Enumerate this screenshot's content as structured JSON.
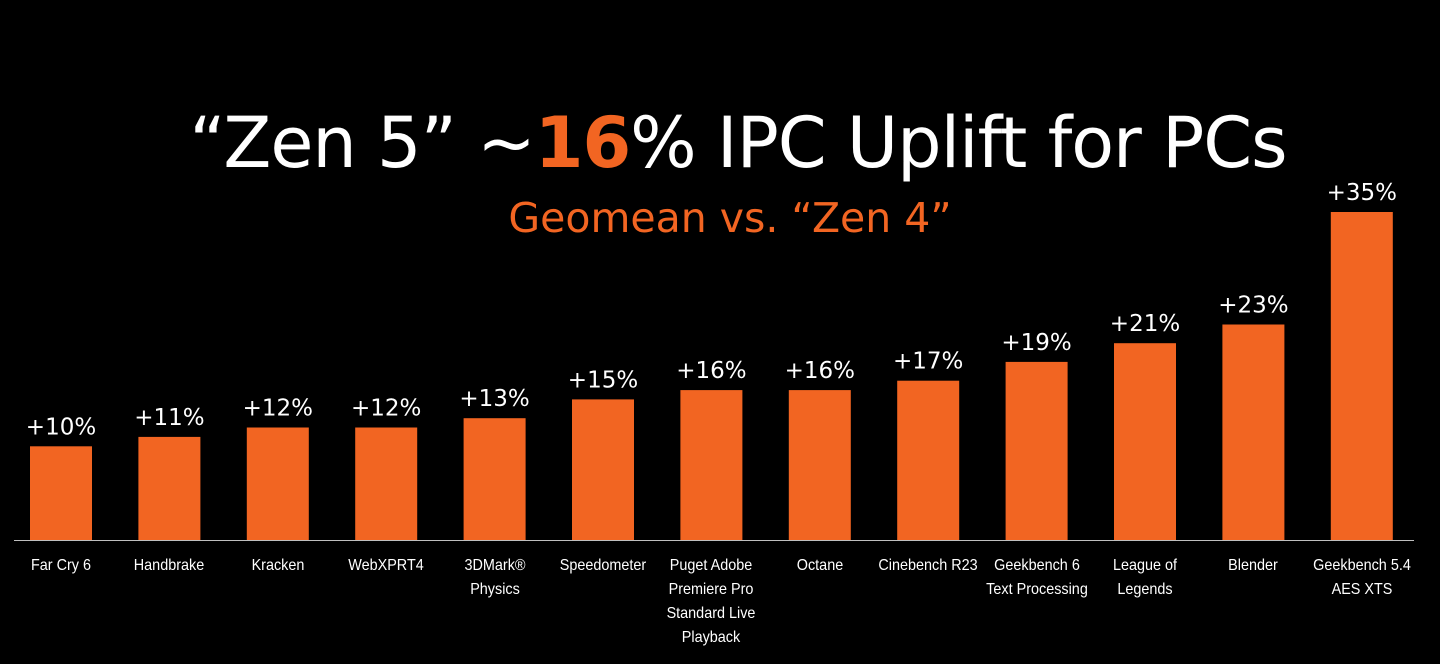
{
  "title": {
    "prefix": "“Zen 5” ~",
    "accent": "16",
    "suffix": "% IPC Uplift for PCs"
  },
  "subtitle": "Geomean  vs. “Zen 4”",
  "colors": {
    "background": "#000000",
    "bar": "#f26522",
    "accent": "#f26522",
    "text": "#ffffff",
    "axis": "#bfbfbf"
  },
  "chart_data": {
    "type": "bar",
    "categories": [
      "Far Cry 6",
      "Handbrake",
      "Kracken",
      "WebXPRT4",
      "3DMark®\nPhysics",
      "Speedometer",
      "Puget Adobe\nPremiere Pro\nStandard Live\nPlayback",
      "Octane",
      "Cinebench R23",
      "Geekbench 6\nText Processing",
      "League of\nLegends",
      "Blender",
      "Geekbench 5.4\nAES XTS"
    ],
    "values": [
      10,
      11,
      12,
      12,
      13,
      15,
      16,
      16,
      17,
      19,
      21,
      23,
      35
    ],
    "data_labels": [
      "+10%",
      "+11%",
      "+12%",
      "+12%",
      "+13%",
      "+15%",
      "+16%",
      "+16%",
      "+17%",
      "+19%",
      "+21%",
      "+23%",
      "+35%"
    ],
    "ylim": [
      0,
      35
    ],
    "grid": false,
    "legend": "none"
  }
}
